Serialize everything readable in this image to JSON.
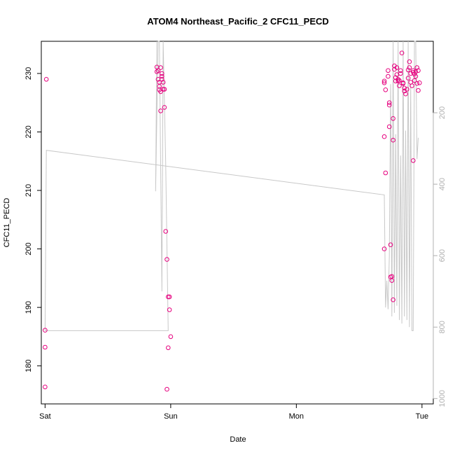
{
  "chart_data": {
    "type": "scatter",
    "title": "ATOM4 Northeast_Pacific_2 CFC11_PECD",
    "xlabel": "Date",
    "ylabel": "CFC11_PECD",
    "x_ticks": [
      "Sat",
      "Sun",
      "Mon",
      "Tue"
    ],
    "x_tick_days": [
      0,
      1,
      2,
      3
    ],
    "xlim": [
      -0.03,
      3.09
    ],
    "ylim": [
      173.5,
      235.5
    ],
    "y_ticks": [
      180,
      190,
      200,
      210,
      220,
      230
    ],
    "y2_ticks": [
      200,
      400,
      600,
      800,
      1000
    ],
    "y2lim": [
      1015,
      0
    ],
    "grid": false,
    "legend": "none",
    "point_color": "#e6007e",
    "trace_color": "#c8c8c8",
    "series": [
      {
        "kind": "points",
        "axis": "left",
        "points": [
          [
            0.01,
            229.0
          ],
          [
            0.0,
            186.1
          ],
          [
            0.0,
            183.2
          ],
          [
            0.0,
            176.4
          ],
          [
            0.89,
            231.1
          ],
          [
            0.89,
            230.3
          ],
          [
            0.9,
            230.5
          ],
          [
            0.9,
            229.0
          ],
          [
            0.91,
            228.5
          ],
          [
            0.91,
            227.8
          ],
          [
            0.91,
            227.2
          ],
          [
            0.92,
            226.9
          ],
          [
            0.92,
            231.0
          ],
          [
            0.93,
            230.0
          ],
          [
            0.93,
            229.5
          ],
          [
            0.93,
            229.0
          ],
          [
            0.94,
            228.5
          ],
          [
            0.94,
            227.3
          ],
          [
            0.92,
            223.6
          ],
          [
            0.95,
            224.2
          ],
          [
            0.95,
            227.3
          ],
          [
            0.96,
            203.0
          ],
          [
            0.97,
            198.2
          ],
          [
            0.98,
            191.8
          ],
          [
            0.99,
            191.8
          ],
          [
            0.99,
            189.6
          ],
          [
            1.0,
            185.0
          ],
          [
            0.98,
            183.1
          ],
          [
            0.97,
            176.0
          ],
          [
            2.7,
            228.7
          ],
          [
            2.7,
            228.4
          ],
          [
            2.71,
            227.2
          ],
          [
            2.7,
            219.2
          ],
          [
            2.71,
            213.0
          ],
          [
            2.7,
            200.0
          ],
          [
            2.73,
            230.5
          ],
          [
            2.73,
            229.5
          ],
          [
            2.74,
            225.0
          ],
          [
            2.74,
            224.6
          ],
          [
            2.74,
            220.9
          ],
          [
            2.75,
            200.7
          ],
          [
            2.75,
            195.2
          ],
          [
            2.76,
            195.3
          ],
          [
            2.76,
            194.6
          ],
          [
            2.77,
            191.3
          ],
          [
            2.77,
            222.3
          ],
          [
            2.77,
            218.6
          ],
          [
            2.78,
            231.3
          ],
          [
            2.78,
            230.7
          ],
          [
            2.79,
            229.3
          ],
          [
            2.79,
            228.7
          ],
          [
            2.8,
            231.0
          ],
          [
            2.8,
            229.8
          ],
          [
            2.81,
            229.0
          ],
          [
            2.81,
            228.7
          ],
          [
            2.82,
            228.8
          ],
          [
            2.82,
            227.9
          ],
          [
            2.83,
            230.5
          ],
          [
            2.83,
            230.0
          ],
          [
            2.84,
            233.5
          ],
          [
            2.85,
            228.4
          ],
          [
            2.85,
            228.3
          ],
          [
            2.86,
            227.5
          ],
          [
            2.86,
            227.0
          ],
          [
            2.87,
            226.5
          ],
          [
            2.88,
            227.3
          ],
          [
            2.89,
            230.6
          ],
          [
            2.89,
            229.2
          ],
          [
            2.9,
            232.0
          ],
          [
            2.9,
            231.0
          ],
          [
            2.91,
            230.0
          ],
          [
            2.91,
            228.5
          ],
          [
            2.92,
            227.9
          ],
          [
            2.93,
            230.2
          ],
          [
            2.93,
            230.5
          ],
          [
            2.93,
            215.1
          ],
          [
            2.94,
            229.9
          ],
          [
            2.94,
            228.8
          ],
          [
            2.95,
            230.3
          ],
          [
            2.95,
            229.5
          ],
          [
            2.96,
            228.3
          ],
          [
            2.96,
            231.0
          ],
          [
            2.97,
            230.5
          ],
          [
            2.97,
            227.1
          ],
          [
            2.98,
            228.4
          ]
        ]
      },
      {
        "kind": "line",
        "axis": "right",
        "points": [
          [
            0.0,
            810
          ],
          [
            0.01,
            305
          ],
          [
            2.7,
            430
          ],
          [
            2.71,
            745
          ],
          [
            2.72,
            670
          ],
          [
            2.73,
            750
          ],
          [
            2.74,
            600
          ],
          [
            2.75,
            120
          ],
          [
            2.76,
            770
          ],
          [
            2.77,
            0
          ],
          [
            2.78,
            760
          ],
          [
            2.79,
            260
          ],
          [
            2.8,
            740
          ],
          [
            2.81,
            0
          ],
          [
            2.82,
            780
          ],
          [
            2.83,
            320
          ],
          [
            2.84,
            790
          ],
          [
            2.85,
            0
          ],
          [
            2.86,
            770
          ],
          [
            2.87,
            250
          ],
          [
            2.88,
            780
          ],
          [
            2.89,
            0
          ],
          [
            2.9,
            800
          ],
          [
            2.91,
            120
          ],
          [
            2.92,
            810
          ],
          [
            2.93,
            810
          ],
          [
            2.94,
            0
          ],
          [
            2.95,
            0
          ],
          [
            2.96,
            330
          ],
          [
            2.97,
            270
          ]
        ]
      },
      {
        "kind": "line",
        "axis": "right",
        "points": [
          [
            0.0,
            810
          ],
          [
            0.98,
            810
          ],
          [
            0.96,
            340
          ],
          [
            0.94,
            0
          ],
          [
            0.93,
            700
          ],
          [
            0.91,
            0
          ],
          [
            0.9,
            0
          ],
          [
            0.88,
            420
          ],
          [
            0.89,
            0
          ]
        ]
      }
    ]
  }
}
